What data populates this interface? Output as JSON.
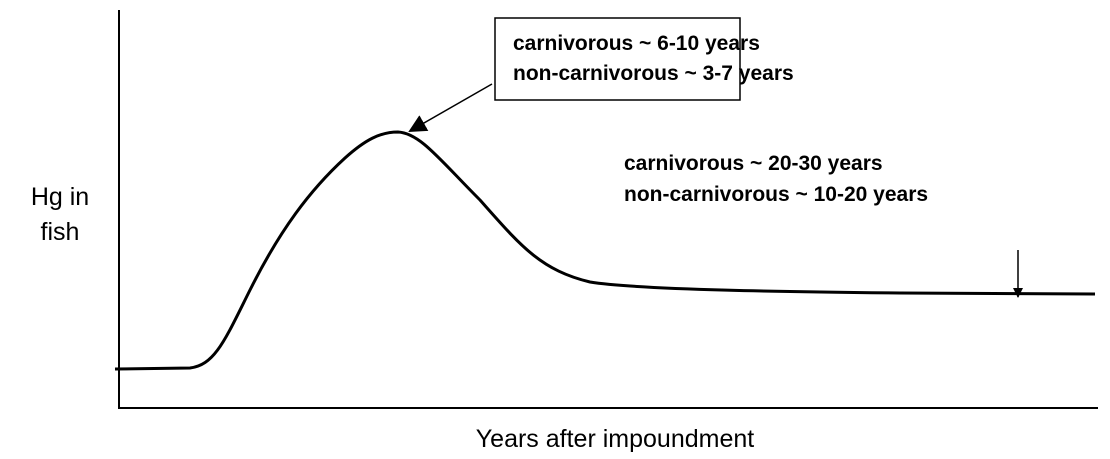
{
  "axis_labels": {
    "y": [
      "Hg in",
      "fish"
    ],
    "x": "Years after impoundment"
  },
  "annotations": [
    {
      "lines": [
        "carnivorous ~ 6-10 years",
        "non-carnivorous ~ 3-7 years"
      ]
    },
    {
      "lines": [
        "carnivorous ~ 20-30 years",
        "non-carnivorous ~ 10-20 years"
      ]
    }
  ]
}
